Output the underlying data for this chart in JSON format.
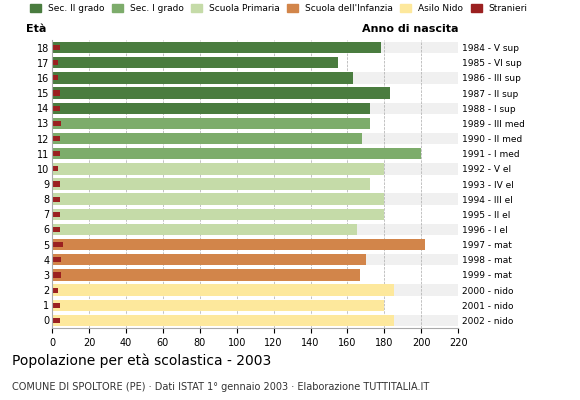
{
  "ages": [
    18,
    17,
    16,
    15,
    14,
    13,
    12,
    11,
    10,
    9,
    8,
    7,
    6,
    5,
    4,
    3,
    2,
    1,
    0
  ],
  "anno_nascita": [
    "1984 - V sup",
    "1985 - VI sup",
    "1986 - III sup",
    "1987 - II sup",
    "1988 - I sup",
    "1989 - III med",
    "1990 - II med",
    "1991 - I med",
    "1992 - V el",
    "1993 - IV el",
    "1994 - III el",
    "1995 - II el",
    "1996 - I el",
    "1997 - mat",
    "1998 - mat",
    "1999 - mat",
    "2000 - nido",
    "2001 - nido",
    "2002 - nido"
  ],
  "values": [
    178,
    155,
    163,
    183,
    172,
    172,
    168,
    200,
    180,
    172,
    180,
    180,
    165,
    202,
    170,
    167,
    185,
    180,
    185
  ],
  "stranieri": [
    4,
    3,
    3,
    4,
    4,
    5,
    4,
    4,
    3,
    4,
    4,
    4,
    4,
    6,
    5,
    5,
    3,
    4,
    4
  ],
  "bar_colors": {
    "sec2": "#4a7c3f",
    "sec1": "#7dac6b",
    "primaria": "#c5dba8",
    "infanzia": "#d2854a",
    "nido": "#fde89c",
    "stranieri": "#9b2020"
  },
  "category_ranges": {
    "sec2": [
      14,
      18
    ],
    "sec1": [
      11,
      13
    ],
    "primaria": [
      6,
      10
    ],
    "infanzia": [
      3,
      5
    ],
    "nido": [
      0,
      2
    ]
  },
  "legend_labels": [
    "Sec. II grado",
    "Sec. I grado",
    "Scuola Primaria",
    "Scuola dell'Infanzia",
    "Asilo Nido",
    "Stranieri"
  ],
  "title": "Popolazione per età scolastica - 2003",
  "subtitle": "COMUNE DI SPOLTORE (PE) · Dati ISTAT 1° gennaio 2003 · Elaborazione TUTTITALIA.IT",
  "xlabel_eta": "Età",
  "xlabel_anno": "Anno di nascita",
  "xlim": [
    0,
    220
  ],
  "xticks": [
    0,
    20,
    40,
    60,
    80,
    100,
    120,
    140,
    160,
    180,
    200,
    220
  ],
  "bg_color": "#ffffff",
  "bar_height": 0.75
}
